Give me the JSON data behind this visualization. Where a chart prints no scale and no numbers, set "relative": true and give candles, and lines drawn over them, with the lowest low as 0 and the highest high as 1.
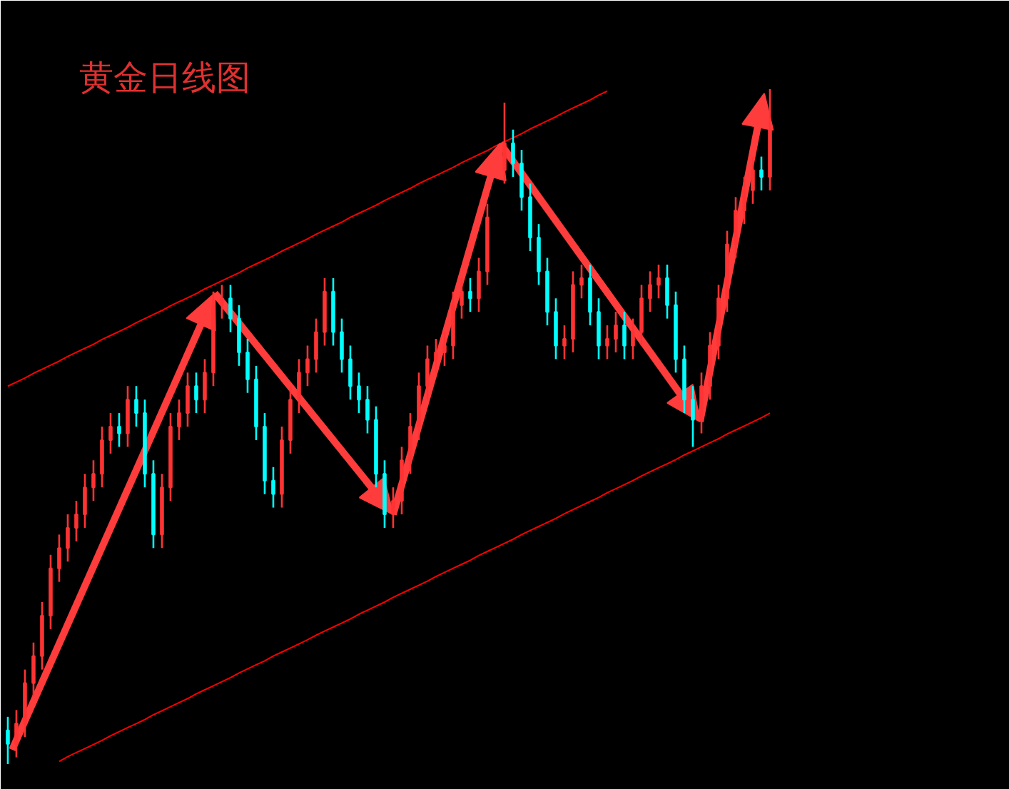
{
  "chart_data": {
    "type": "candlestick",
    "title": "黄金日线图",
    "relative": true,
    "categories": [
      null,
      null,
      null,
      null,
      null,
      null,
      null,
      null,
      null,
      null,
      null,
      null,
      null,
      null,
      null,
      null,
      null,
      null,
      null,
      null,
      null,
      null,
      null,
      null,
      null,
      null,
      null,
      null,
      null,
      null,
      null,
      null,
      null,
      null,
      null,
      null,
      null,
      null,
      null,
      null,
      null,
      null,
      null,
      null,
      null,
      null,
      null,
      null,
      null,
      null,
      null,
      null,
      null,
      null,
      null,
      null,
      null,
      null,
      null,
      null,
      null,
      null,
      null,
      null,
      null,
      null,
      null,
      null,
      null,
      null,
      null,
      null,
      null,
      null,
      null,
      null,
      null,
      null,
      null,
      null,
      null,
      null,
      null,
      null,
      null,
      null,
      null,
      null,
      null,
      null
    ],
    "ohlc": [
      [
        0.05,
        0.07,
        0.0,
        0.03
      ],
      [
        0.03,
        0.08,
        0.01,
        0.06
      ],
      [
        0.06,
        0.14,
        0.04,
        0.12
      ],
      [
        0.12,
        0.18,
        0.1,
        0.16
      ],
      [
        0.16,
        0.24,
        0.14,
        0.22
      ],
      [
        0.22,
        0.31,
        0.2,
        0.29
      ],
      [
        0.29,
        0.34,
        0.27,
        0.32
      ],
      [
        0.32,
        0.37,
        0.3,
        0.35
      ],
      [
        0.35,
        0.39,
        0.33,
        0.37
      ],
      [
        0.37,
        0.43,
        0.35,
        0.41
      ],
      [
        0.41,
        0.45,
        0.39,
        0.43
      ],
      [
        0.43,
        0.5,
        0.41,
        0.48
      ],
      [
        0.48,
        0.52,
        0.46,
        0.5
      ],
      [
        0.5,
        0.52,
        0.47,
        0.49
      ],
      [
        0.49,
        0.56,
        0.47,
        0.54
      ],
      [
        0.54,
        0.56,
        0.5,
        0.52
      ],
      [
        0.52,
        0.54,
        0.41,
        0.43
      ],
      [
        0.43,
        0.45,
        0.32,
        0.34
      ],
      [
        0.34,
        0.43,
        0.32,
        0.41
      ],
      [
        0.41,
        0.52,
        0.39,
        0.5
      ],
      [
        0.5,
        0.54,
        0.48,
        0.52
      ],
      [
        0.52,
        0.58,
        0.5,
        0.56
      ],
      [
        0.56,
        0.58,
        0.52,
        0.54
      ],
      [
        0.54,
        0.6,
        0.52,
        0.58
      ],
      [
        0.58,
        0.7,
        0.56,
        0.68
      ],
      [
        0.68,
        0.71,
        0.66,
        0.69
      ],
      [
        0.69,
        0.71,
        0.64,
        0.66
      ],
      [
        0.66,
        0.68,
        0.59,
        0.61
      ],
      [
        0.61,
        0.63,
        0.55,
        0.57
      ],
      [
        0.57,
        0.59,
        0.48,
        0.5
      ],
      [
        0.5,
        0.52,
        0.4,
        0.42
      ],
      [
        0.42,
        0.44,
        0.38,
        0.4
      ],
      [
        0.4,
        0.5,
        0.38,
        0.48
      ],
      [
        0.48,
        0.56,
        0.46,
        0.54
      ],
      [
        0.54,
        0.6,
        0.52,
        0.58
      ],
      [
        0.58,
        0.62,
        0.56,
        0.6
      ],
      [
        0.6,
        0.66,
        0.58,
        0.64
      ],
      [
        0.64,
        0.72,
        0.62,
        0.7
      ],
      [
        0.7,
        0.72,
        0.62,
        0.64
      ],
      [
        0.64,
        0.66,
        0.58,
        0.6
      ],
      [
        0.6,
        0.62,
        0.54,
        0.56
      ],
      [
        0.56,
        0.58,
        0.52,
        0.54
      ],
      [
        0.54,
        0.56,
        0.49,
        0.51
      ],
      [
        0.51,
        0.53,
        0.41,
        0.43
      ],
      [
        0.43,
        0.45,
        0.35,
        0.37
      ],
      [
        0.37,
        0.41,
        0.35,
        0.39
      ],
      [
        0.39,
        0.47,
        0.37,
        0.45
      ],
      [
        0.45,
        0.52,
        0.43,
        0.5
      ],
      [
        0.5,
        0.58,
        0.48,
        0.56
      ],
      [
        0.56,
        0.62,
        0.54,
        0.6
      ],
      [
        0.6,
        0.63,
        0.58,
        0.61
      ],
      [
        0.61,
        0.64,
        0.59,
        0.62
      ],
      [
        0.62,
        0.7,
        0.6,
        0.68
      ],
      [
        0.68,
        0.72,
        0.66,
        0.7
      ],
      [
        0.7,
        0.72,
        0.67,
        0.69
      ],
      [
        0.69,
        0.75,
        0.67,
        0.73
      ],
      [
        0.73,
        0.83,
        0.71,
        0.81
      ],
      null,
      [
        0.88,
        0.98,
        0.86,
        0.92
      ],
      [
        0.92,
        0.94,
        0.87,
        0.89
      ],
      [
        0.89,
        0.91,
        0.82,
        0.84
      ],
      [
        0.84,
        0.86,
        0.76,
        0.78
      ],
      [
        0.78,
        0.8,
        0.71,
        0.73
      ],
      [
        0.73,
        0.75,
        0.65,
        0.67
      ],
      [
        0.67,
        0.69,
        0.6,
        0.62
      ],
      [
        0.62,
        0.65,
        0.6,
        0.63
      ],
      [
        0.63,
        0.73,
        0.61,
        0.71
      ],
      [
        0.71,
        0.74,
        0.69,
        0.72
      ],
      [
        0.72,
        0.74,
        0.65,
        0.67
      ],
      [
        0.67,
        0.69,
        0.6,
        0.62
      ],
      [
        0.62,
        0.65,
        0.6,
        0.63
      ],
      [
        0.63,
        0.67,
        0.61,
        0.65
      ],
      [
        0.65,
        0.67,
        0.6,
        0.62
      ],
      [
        0.62,
        0.66,
        0.6,
        0.64
      ],
      [
        0.64,
        0.71,
        0.62,
        0.69
      ],
      [
        0.69,
        0.73,
        0.67,
        0.71
      ],
      [
        0.71,
        0.74,
        0.69,
        0.72
      ],
      [
        0.72,
        0.74,
        0.66,
        0.68
      ],
      [
        0.68,
        0.7,
        0.58,
        0.6
      ],
      [
        0.6,
        0.62,
        0.52,
        0.54
      ],
      [
        0.54,
        0.56,
        0.47,
        0.51
      ],
      [
        0.51,
        0.58,
        0.49,
        0.56
      ],
      [
        0.56,
        0.64,
        0.54,
        0.62
      ],
      [
        0.62,
        0.71,
        0.6,
        0.69
      ],
      [
        0.69,
        0.79,
        0.67,
        0.77
      ],
      [
        0.77,
        0.84,
        0.75,
        0.82
      ],
      [
        0.82,
        0.87,
        0.8,
        0.85
      ],
      [
        0.85,
        0.9,
        0.83,
        0.88
      ],
      [
        0.88,
        0.9,
        0.85,
        0.87
      ],
      [
        0.87,
        1.0,
        0.85,
        0.94
      ]
    ],
    "colors": [
      "#00ffff",
      "#ff3333",
      "#ff3333",
      "#ff3333",
      "#ff3333",
      "#ff3333",
      "#ff3333",
      "#ff3333",
      "#ff3333",
      "#ff3333",
      "#ff3333",
      "#ff3333",
      "#ff3333",
      "#00ffff",
      "#ff3333",
      "#00ffff",
      "#00ffff",
      "#00ffff",
      "#ff3333",
      "#ff3333",
      "#ff3333",
      "#ff3333",
      "#00ffff",
      "#ff3333",
      "#ff3333",
      "#ff3333",
      "#00ffff",
      "#00ffff",
      "#00ffff",
      "#00ffff",
      "#00ffff",
      "#00ffff",
      "#ff3333",
      "#ff3333",
      "#ff3333",
      "#ff3333",
      "#ff3333",
      "#ff3333",
      "#00ffff",
      "#00ffff",
      "#00ffff",
      "#00ffff",
      "#00ffff",
      "#00ffff",
      "#00ffff",
      "#ff3333",
      "#ff3333",
      "#ff3333",
      "#ff3333",
      "#ff3333",
      "#ff3333",
      "#ff3333",
      "#ff3333",
      "#ff3333",
      "#00ffff",
      "#ff3333",
      "#ff3333",
      "#ff3333",
      "#ff3333",
      "#00ffff",
      "#00ffff",
      "#00ffff",
      "#00ffff",
      "#00ffff",
      "#00ffff",
      "#ff3333",
      "#ff3333",
      "#ff3333",
      "#00ffff",
      "#00ffff",
      "#ff3333",
      "#ff3333",
      "#00ffff",
      "#ff3333",
      "#ff3333",
      "#ff3333",
      "#ff3333",
      "#00ffff",
      "#00ffff",
      "#00ffff",
      "#00ffff",
      "#ff3333",
      "#ff3333",
      "#ff3333",
      "#ff3333",
      "#ff3333",
      "#ff3333",
      "#ff3333",
      "#00ffff",
      "#ff3333"
    ],
    "series": [
      {
        "type": "line",
        "color": "#ff0000",
        "values": [
          0.56,
          0.566,
          0.572,
          0.579,
          0.585,
          0.591,
          0.597,
          0.604,
          0.61,
          0.616,
          0.622,
          0.629,
          0.635,
          0.641,
          0.647,
          0.654,
          0.66,
          0.666,
          0.672,
          0.679,
          0.685,
          0.691,
          0.697,
          0.704,
          0.71,
          0.716,
          0.722,
          0.728,
          0.735,
          0.741,
          0.747,
          0.753,
          0.76,
          0.766,
          0.772,
          0.778,
          0.785,
          0.791,
          0.797,
          0.803,
          0.81,
          0.816,
          0.822,
          0.828,
          0.835,
          0.841,
          0.847,
          0.853,
          0.86,
          0.866,
          0.872,
          0.878,
          0.884,
          0.891,
          0.897,
          0.903,
          0.909,
          0.916,
          0.922,
          0.928,
          0.934,
          0.941,
          0.947,
          0.953,
          0.959,
          0.966,
          0.972,
          0.978,
          0.984,
          0.991,
          0.997,
          null,
          null,
          null,
          null,
          null,
          null,
          null,
          null,
          null,
          null,
          null,
          null,
          null,
          null,
          null,
          null,
          null,
          null,
          null
        ]
      },
      {
        "type": "line",
        "color": "#ff0000",
        "values": [
          null,
          null,
          null,
          null,
          null,
          null,
          0.004,
          0.011,
          0.017,
          0.023,
          0.029,
          0.035,
          0.042,
          0.048,
          0.054,
          0.06,
          0.066,
          0.073,
          0.079,
          0.085,
          0.091,
          0.097,
          0.104,
          0.11,
          0.116,
          0.122,
          0.128,
          0.135,
          0.141,
          0.147,
          0.153,
          0.16,
          0.166,
          0.172,
          0.178,
          0.184,
          0.191,
          0.197,
          0.203,
          0.209,
          0.215,
          0.222,
          0.228,
          0.234,
          0.24,
          0.247,
          0.253,
          0.259,
          0.265,
          0.271,
          0.278,
          0.284,
          0.29,
          0.296,
          0.302,
          0.309,
          0.315,
          0.321,
          0.327,
          0.333,
          0.34,
          0.346,
          0.352,
          0.358,
          0.364,
          0.371,
          0.377,
          0.383,
          0.389,
          0.395,
          0.402,
          0.408,
          0.414,
          0.42,
          0.427,
          0.433,
          0.439,
          0.445,
          0.451,
          0.458,
          0.464,
          0.47,
          0.476,
          0.482,
          0.489,
          0.495,
          0.501,
          0.507,
          0.513,
          0.52
        ]
      }
    ]
  }
}
